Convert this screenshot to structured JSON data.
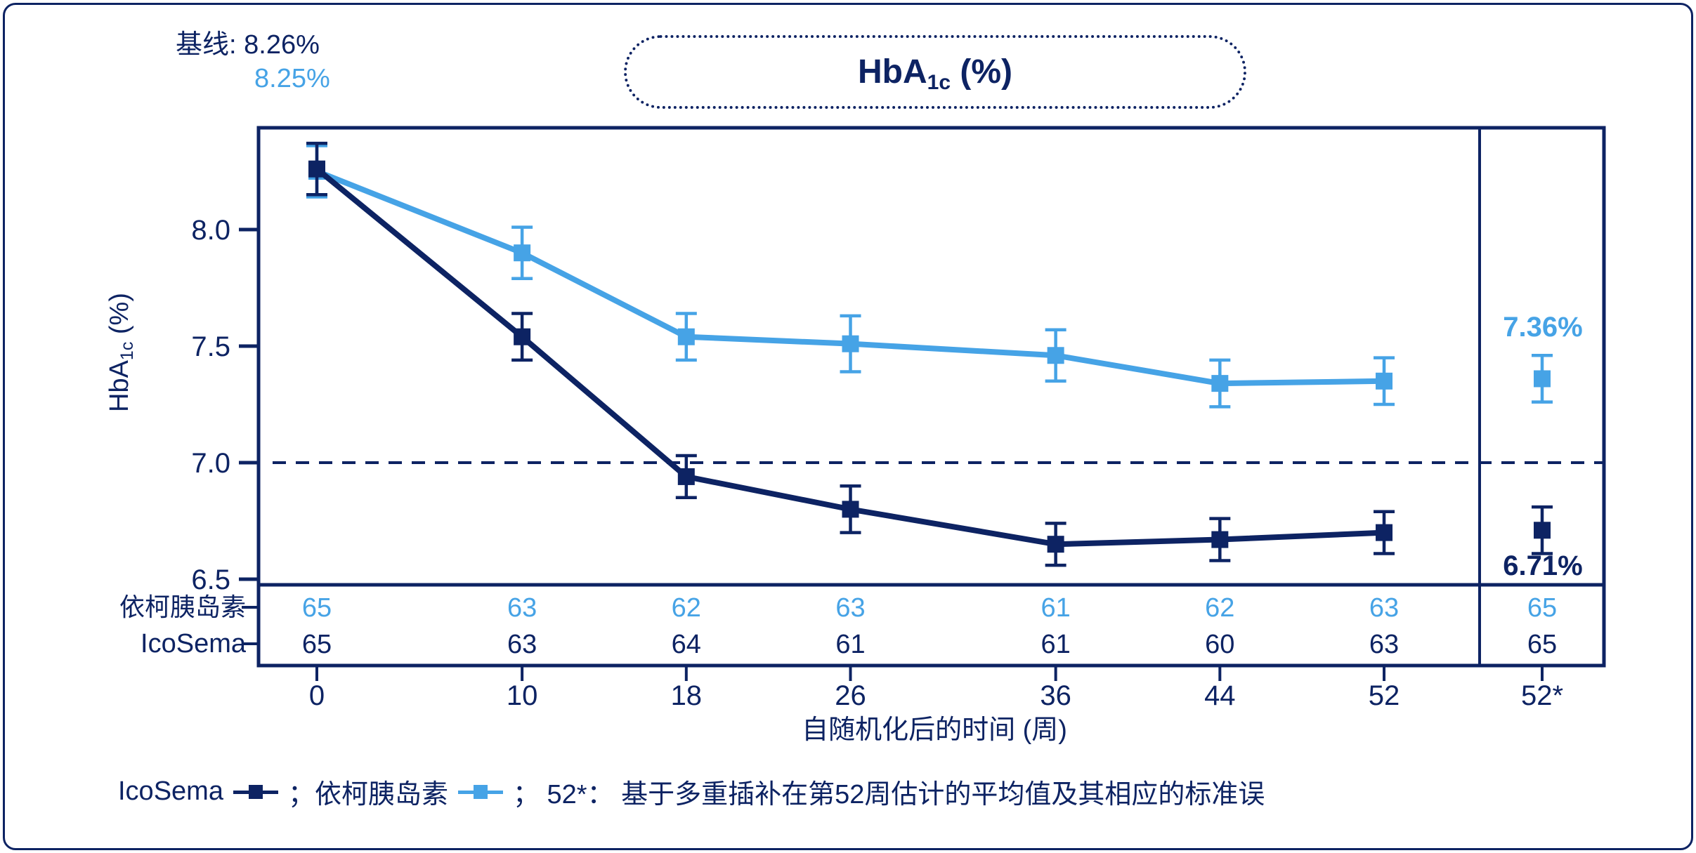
{
  "colors": {
    "navy": "#0D2363",
    "light_blue": "#46A3E6",
    "background": "#FFFFFF"
  },
  "title": {
    "main": "HbA",
    "sub": "1c",
    "rest": " (%)"
  },
  "ylabel": {
    "main": "HbA",
    "sub": "1c",
    "rest": " (%)"
  },
  "annotations": {
    "baseline": {
      "prefix": "基线:",
      "icosema": "8.26%",
      "comparator": "8.25%"
    },
    "end_labels": {
      "comparator": "7.36%",
      "icosema": "6.71%"
    }
  },
  "legend": {
    "items": [
      {
        "label": "IcoSema",
        "marker_color": "#0D2363"
      },
      {
        "label": "；依柯胰岛素",
        "marker_color": "#46A3E6"
      }
    ],
    "note": "； 52*： 基于多重插补在第52周估计的平均值及其相应的标准误"
  },
  "chart_data": {
    "type": "line",
    "title": "HbA1c (%)",
    "xlabel": "自随机化后的时间 (周)",
    "ylabel": "HbA1c (%)",
    "weeks": [
      0,
      10,
      18,
      26,
      36,
      44,
      52
    ],
    "x_ticks": [
      "0",
      "10",
      "18",
      "26",
      "36",
      "44",
      "52",
      "52*"
    ],
    "y_ticks": [
      "8.0",
      "7.5",
      "7.0",
      "6.5"
    ],
    "ylim": [
      6.48,
      8.44
    ],
    "reference_line": 7.0,
    "grid": false,
    "legend_position": "bottom",
    "series": [
      {
        "name": "依柯胰岛素",
        "color": "#46A3E6",
        "values": [
          8.25,
          7.9,
          7.54,
          7.51,
          7.46,
          7.34,
          7.35
        ],
        "se": [
          0.11,
          0.11,
          0.1,
          0.12,
          0.11,
          0.1,
          0.1
        ],
        "week52_mi": {
          "x_label": "52*",
          "value": 7.36,
          "se": 0.1,
          "label": "7.36%"
        },
        "baseline_label": "8.25%"
      },
      {
        "name": "IcoSema",
        "color": "#0D2363",
        "values": [
          8.26,
          7.54,
          6.94,
          6.8,
          6.65,
          6.67,
          6.7
        ],
        "se": [
          0.11,
          0.1,
          0.09,
          0.1,
          0.09,
          0.09,
          0.09
        ],
        "week52_mi": {
          "x_label": "52*",
          "value": 6.71,
          "se": 0.1,
          "label": "6.71%"
        },
        "baseline_label": "8.26%"
      }
    ],
    "n_table": {
      "rows": [
        {
          "label": "依柯胰岛素",
          "color": "#46A3E6",
          "values": [
            65,
            63,
            62,
            63,
            61,
            62,
            63,
            65
          ]
        },
        {
          "label": "IcoSema",
          "color": "#0D2363",
          "values": [
            65,
            63,
            64,
            61,
            61,
            60,
            63,
            65
          ]
        }
      ]
    }
  }
}
